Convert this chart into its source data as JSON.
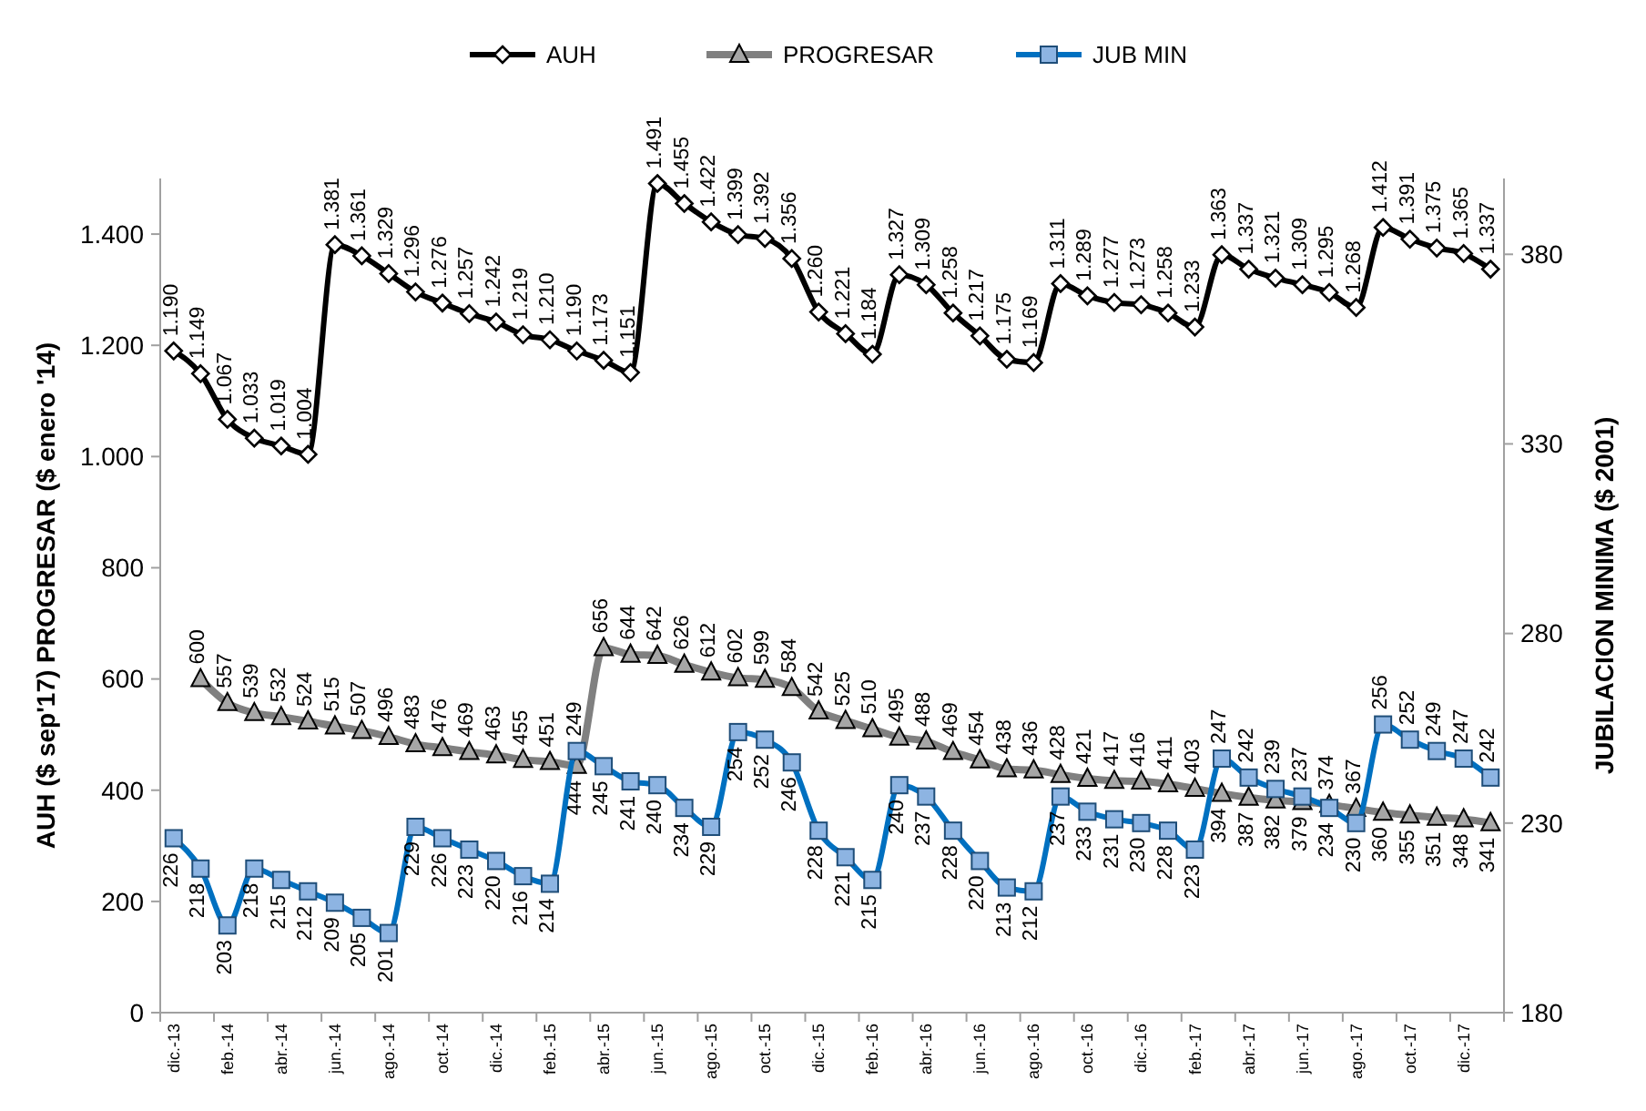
{
  "chart_data": {
    "type": "line",
    "ylabel": "AUH ($ sep'17) PROGRESAR  ($ enero '14)",
    "y2label": "JUBILACION MINIMA ($ 2001)",
    "categories": [
      "dic.-13",
      null,
      "feb.-14",
      null,
      "abr.-14",
      null,
      "jun.-14",
      null,
      "ago.-14",
      null,
      "oct.-14",
      null,
      "dic.-14",
      null,
      "feb.-15",
      null,
      "abr.-15",
      null,
      "jun.-15",
      null,
      "ago.-15",
      null,
      "oct.-15",
      null,
      "dic.-15",
      null,
      "feb.-16",
      null,
      "abr.-16",
      null,
      "jun.-16",
      null,
      "ago.-16",
      null,
      "oct.-16",
      null,
      "dic.-16",
      null,
      "feb.-17",
      null,
      "abr.-17",
      null,
      "jun.-17",
      null,
      "ago.-17",
      null,
      "oct.-17",
      null,
      "dic.-17",
      null
    ],
    "ylim": [
      0,
      1500
    ],
    "yticks": [
      0,
      200,
      400,
      600,
      800,
      {
        "value": 1000,
        "label": "1.000"
      },
      {
        "value": 1200,
        "label": "1.200"
      },
      {
        "value": 1400,
        "label": "1.400"
      }
    ],
    "y2lim": [
      180,
      400
    ],
    "y2ticks": [
      180,
      230,
      280,
      330,
      380
    ],
    "grid": false,
    "legend": "top",
    "line_style": "solid",
    "series": [
      {
        "name": "AUH",
        "color": "#000000",
        "marker": "diamond",
        "values": [
          1190,
          1149,
          1067,
          1033,
          1019,
          1004,
          1381,
          1361,
          1329,
          1296,
          1276,
          1257,
          1242,
          1219,
          1210,
          1190,
          1173,
          1151,
          1491,
          1455,
          1422,
          1399,
          1392,
          1356,
          1260,
          1221,
          1184,
          1327,
          1309,
          1258,
          1217,
          1175,
          1169,
          1311,
          1289,
          1277,
          1273,
          1258,
          1233,
          1363,
          1337,
          1321,
          1309,
          1295,
          1268,
          1412,
          1391,
          1375,
          1365,
          1337
        ],
        "value_labels": [
          "1.190",
          "1.149",
          "1.067",
          "1.033",
          "1.019",
          "1.004",
          "1.381",
          "1.361",
          "1.329",
          "1.296",
          "1.276",
          "1.257",
          "1.242",
          "1.219",
          "1.210",
          "1.190",
          "1.173",
          "1.151",
          "1.491",
          "1.455",
          "1.422",
          "1.399",
          "1.392",
          "1.356",
          "1.260",
          "1.221",
          "1.184",
          "1.327",
          "1.309",
          "1.258",
          "1.217",
          "1.175",
          "1.169",
          "1.311",
          "1.289",
          "1.277",
          "1.273",
          "1.258",
          "1.233",
          "1.363",
          "1.337",
          "1.321",
          "1.309",
          "1.295",
          "1.268",
          "1.412",
          "1.391",
          "1.375",
          "1.365",
          "1.337"
        ]
      },
      {
        "name": "PROGRESAR",
        "color": "#808080",
        "marker": "triangle",
        "values": [
          null,
          600,
          557,
          539,
          532,
          524,
          515,
          507,
          496,
          483,
          476,
          469,
          463,
          455,
          451,
          444,
          656,
          644,
          642,
          626,
          612,
          602,
          599,
          584,
          542,
          525,
          510,
          495,
          488,
          469,
          454,
          438,
          436,
          428,
          421,
          417,
          416,
          411,
          403,
          394,
          387,
          382,
          379,
          374,
          367,
          360,
          355,
          351,
          348,
          341
        ],
        "value_labels": [
          null,
          "600",
          "557",
          "539",
          "532",
          "524",
          "515",
          "507",
          "496",
          "483",
          "476",
          "469",
          "463",
          "455",
          "451",
          "444",
          "656",
          "644",
          "642",
          "626",
          "612",
          "602",
          "599",
          "584",
          "542",
          "525",
          "510",
          "495",
          "488",
          "469",
          "454",
          "438",
          "436",
          "428",
          "421",
          "417",
          "416",
          "411",
          "403",
          "394",
          "387",
          "382",
          "379",
          "374",
          "367",
          "360",
          "355",
          "351",
          "348",
          "341"
        ]
      },
      {
        "name": "JUB MIN",
        "color": "#0070c0",
        "marker": "square",
        "axis": "y2",
        "values": [
          226,
          218,
          203,
          218,
          215,
          212,
          209,
          205,
          201,
          229,
          226,
          223,
          220,
          216,
          214,
          249,
          245,
          241,
          240,
          234,
          229,
          254,
          252,
          246,
          228,
          221,
          215,
          240,
          237,
          228,
          220,
          213,
          212,
          237,
          233,
          231,
          230,
          228,
          223,
          247,
          242,
          239,
          237,
          234,
          230,
          256,
          252,
          249,
          247,
          242
        ],
        "value_labels": [
          "226",
          "218",
          "203",
          "218",
          "215",
          "212",
          "209",
          "205",
          "201",
          "229",
          "226",
          "223",
          "220",
          "216",
          "214",
          "249",
          "245",
          "241",
          "240",
          "234",
          "229",
          "254",
          "252",
          "246",
          "228",
          "221",
          "215",
          "240",
          "237",
          "228",
          "220",
          "213",
          "212",
          "237",
          "233",
          "231",
          "230",
          "228",
          "223",
          "247",
          "242",
          "239",
          "237",
          "234",
          "230",
          "256",
          "252",
          "249",
          "247",
          "242"
        ]
      }
    ]
  }
}
